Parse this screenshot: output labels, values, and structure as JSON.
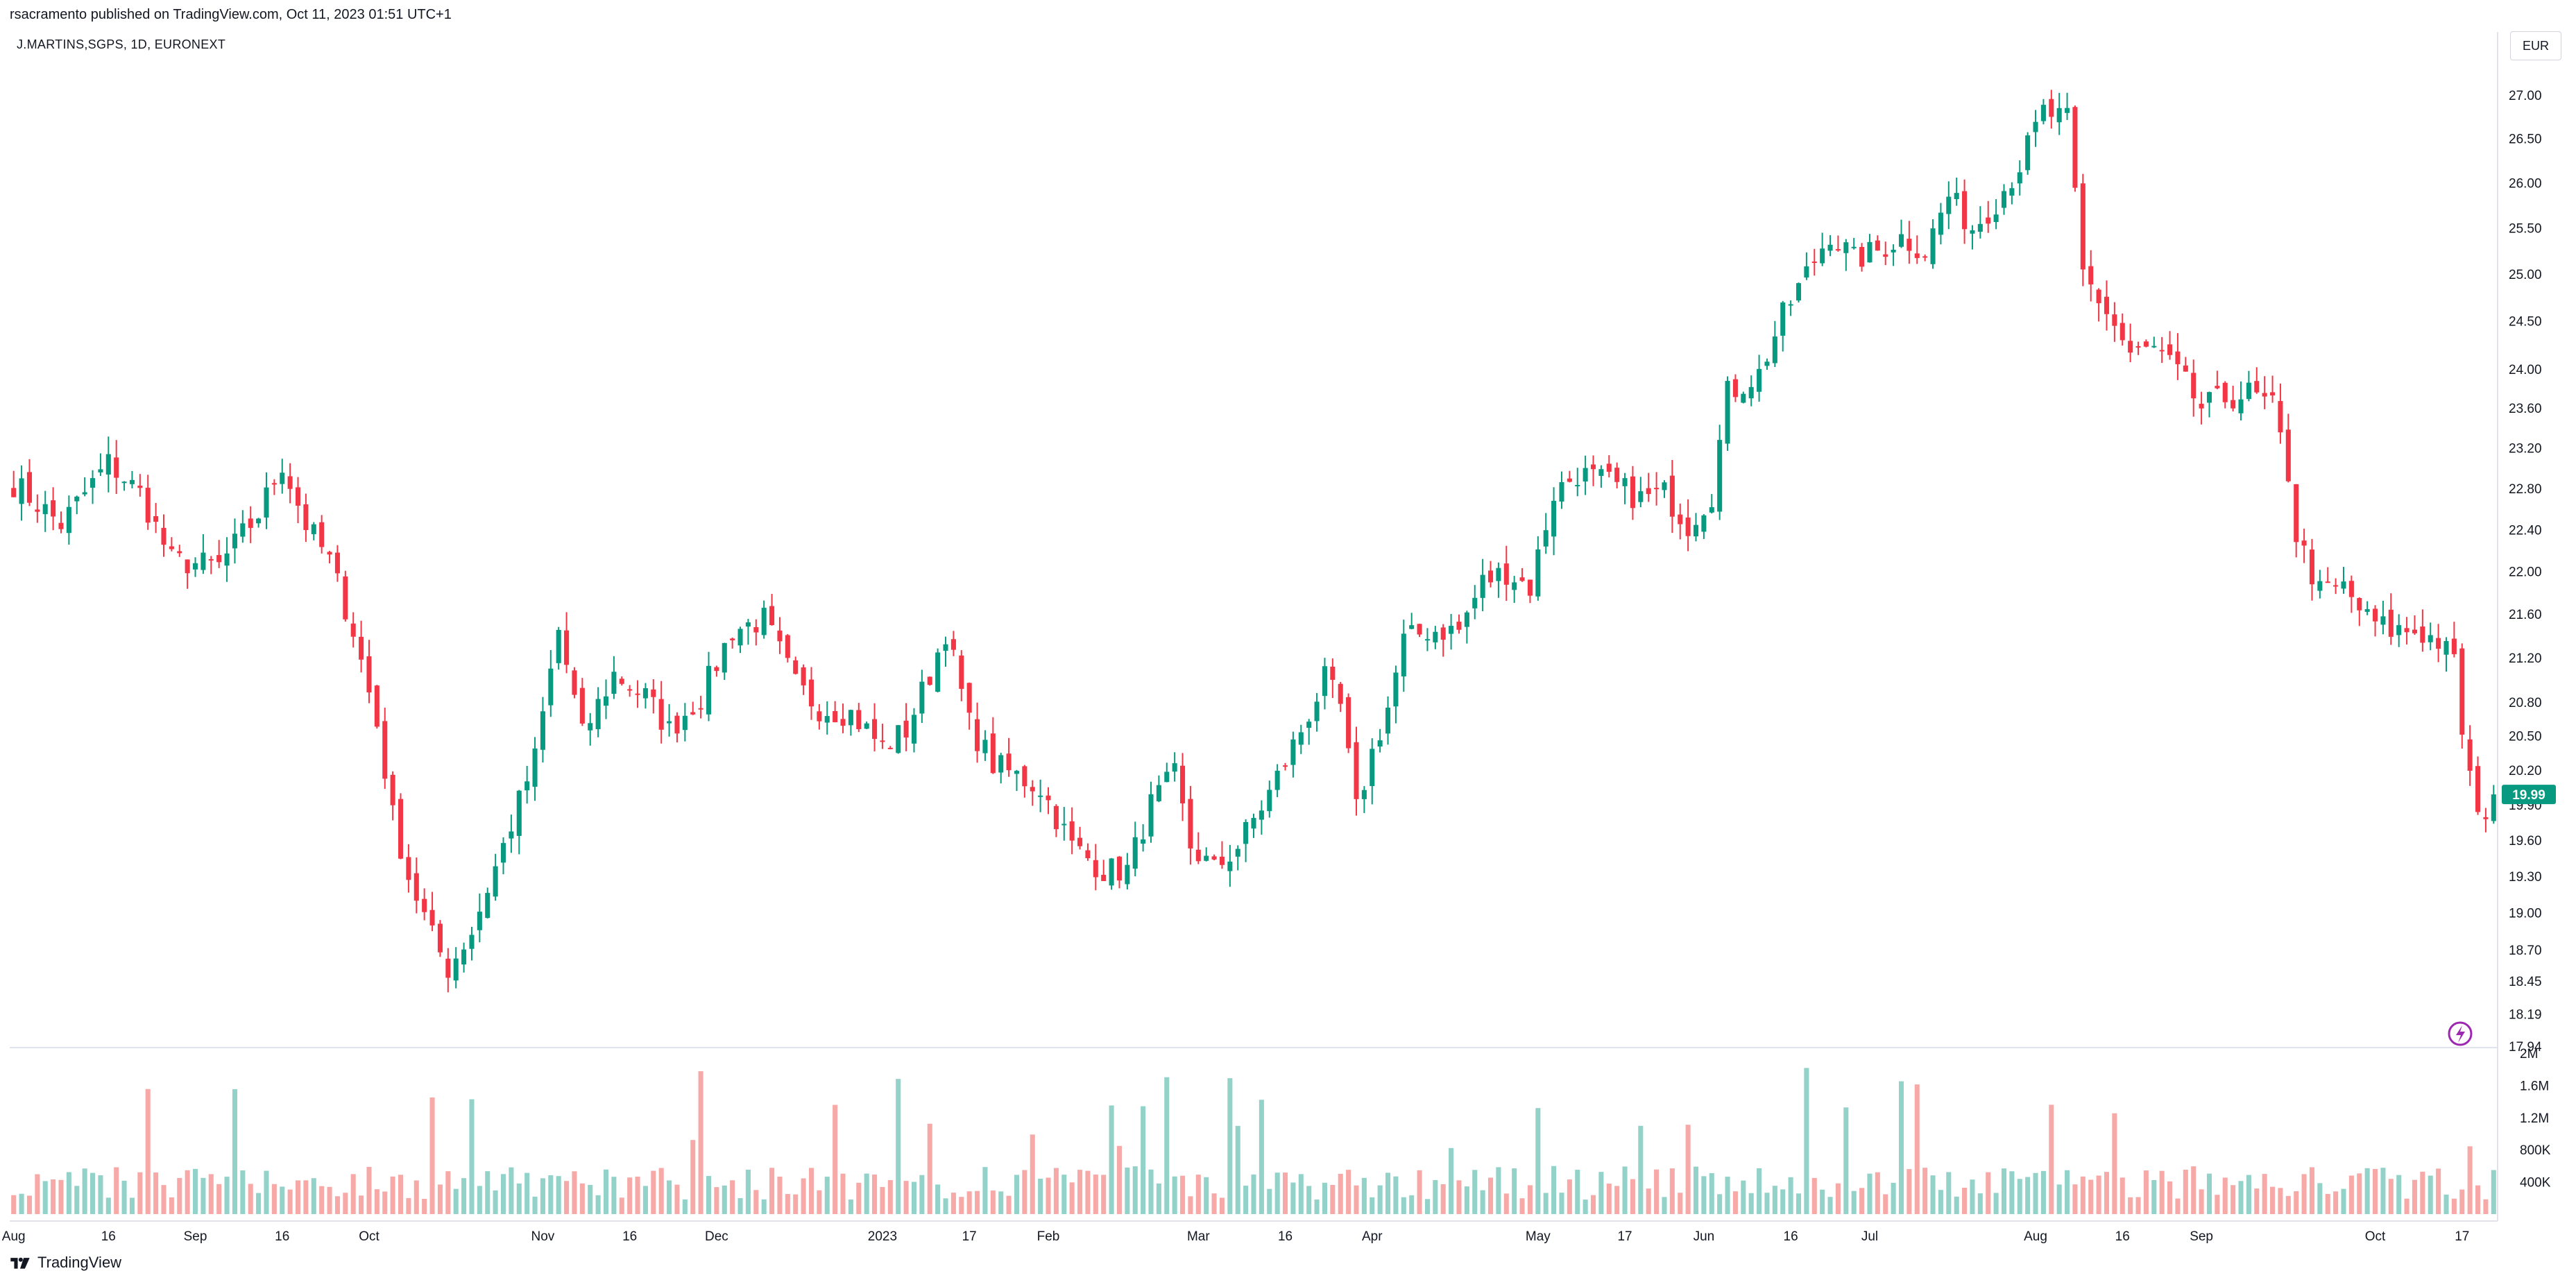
{
  "header": {
    "published": "rsacramento published on TradingView.com, Oct 11, 2023 01:51 UTC+1",
    "symbol": "J.MARTINS,SGPS, 1D, EURONEXT",
    "currency": "EUR"
  },
  "footer": {
    "brand": "TradingView"
  },
  "colors": {
    "up": "#089981",
    "down": "#f23645",
    "upVol": "#92d2c8",
    "downVol": "#f7a9a7",
    "lastPrice": "#089981"
  },
  "chart_data": {
    "type": "candlestick",
    "symbol": "J.MARTINS,SGPS",
    "interval": "1D",
    "exchange": "EURONEXT",
    "currency": "EUR",
    "price_axis": {
      "ticks": [
        17.94,
        18.19,
        18.45,
        18.7,
        19.0,
        19.3,
        19.6,
        19.9,
        20.2,
        20.5,
        20.8,
        21.2,
        21.6,
        22.0,
        22.4,
        22.8,
        23.2,
        23.6,
        24.0,
        24.5,
        25.0,
        25.5,
        26.0,
        26.5,
        27.0
      ],
      "scale": "logarithmic",
      "range": [
        17.94,
        27.2
      ]
    },
    "volume_axis": {
      "ticks": [
        "400K",
        "800K",
        "1.2M",
        "1.6M",
        "2M"
      ],
      "range": [
        0,
        2000000
      ]
    },
    "last_price": "19.99",
    "time_axis": [
      "Aug",
      "16",
      "Sep",
      "16",
      "Oct",
      "Nov",
      "16",
      "Dec",
      "2023",
      "17",
      "Feb",
      "Mar",
      "16",
      "Apr",
      "May",
      "17",
      "Jun",
      "16",
      "Jul",
      "Aug",
      "16",
      "Sep",
      "Oct",
      "17"
    ],
    "price_path": [
      [
        0,
        22.85
      ],
      [
        6,
        22.45
      ],
      [
        12,
        23.05
      ],
      [
        16,
        22.75
      ],
      [
        20,
        22.1
      ],
      [
        26,
        22.05
      ],
      [
        31,
        22.55
      ],
      [
        34,
        23.05
      ],
      [
        37,
        22.45
      ],
      [
        40,
        22.1
      ],
      [
        43,
        21.45
      ],
      [
        46,
        20.6
      ],
      [
        48,
        19.8
      ],
      [
        50,
        19.3
      ],
      [
        53,
        18.8
      ],
      [
        55,
        18.55
      ],
      [
        58,
        18.85
      ],
      [
        62,
        19.55
      ],
      [
        66,
        20.3
      ],
      [
        69,
        21.45
      ],
      [
        72,
        20.5
      ],
      [
        76,
        21.05
      ],
      [
        80,
        20.85
      ],
      [
        83,
        20.55
      ],
      [
        87,
        20.85
      ],
      [
        91,
        21.45
      ],
      [
        95,
        21.55
      ],
      [
        99,
        20.95
      ],
      [
        102,
        20.75
      ],
      [
        106,
        20.7
      ],
      [
        110,
        20.4
      ],
      [
        113,
        20.55
      ],
      [
        116,
        21.05
      ],
      [
        118,
        21.45
      ],
      [
        121,
        20.6
      ],
      [
        124,
        20.25
      ],
      [
        127,
        20.15
      ],
      [
        130,
        20.05
      ],
      [
        134,
        19.55
      ],
      [
        138,
        19.35
      ],
      [
        141,
        19.35
      ],
      [
        144,
        19.9
      ],
      [
        147,
        20.15
      ],
      [
        149,
        19.55
      ],
      [
        152,
        19.35
      ],
      [
        155,
        19.55
      ],
      [
        159,
        20.0
      ],
      [
        163,
        20.55
      ],
      [
        166,
        21.0
      ],
      [
        168,
        20.75
      ],
      [
        170,
        19.85
      ],
      [
        172,
        20.35
      ],
      [
        174,
        20.75
      ],
      [
        176,
        21.35
      ],
      [
        179,
        21.45
      ],
      [
        183,
        21.45
      ],
      [
        186,
        21.9
      ],
      [
        189,
        22.0
      ],
      [
        192,
        21.85
      ],
      [
        195,
        22.75
      ],
      [
        198,
        22.95
      ],
      [
        202,
        22.85
      ],
      [
        206,
        22.7
      ],
      [
        209,
        22.75
      ],
      [
        212,
        22.45
      ],
      [
        215,
        22.75
      ],
      [
        217,
        23.75
      ],
      [
        221,
        23.95
      ],
      [
        224,
        24.55
      ],
      [
        227,
        25.0
      ],
      [
        230,
        25.45
      ],
      [
        233,
        25.15
      ],
      [
        236,
        25.25
      ],
      [
        239,
        25.4
      ],
      [
        242,
        25.25
      ],
      [
        245,
        25.85
      ],
      [
        248,
        25.5
      ],
      [
        251,
        25.8
      ],
      [
        254,
        26.2
      ],
      [
        257,
        26.8
      ],
      [
        260,
        26.7
      ],
      [
        262,
        25.0
      ],
      [
        265,
        24.6
      ],
      [
        268,
        24.15
      ],
      [
        271,
        24.2
      ],
      [
        274,
        23.95
      ],
      [
        277,
        23.6
      ],
      [
        280,
        23.7
      ],
      [
        283,
        23.75
      ],
      [
        286,
        23.6
      ],
      [
        288,
        22.95
      ],
      [
        289,
        22.35
      ],
      [
        292,
        21.8
      ],
      [
        295,
        21.85
      ],
      [
        298,
        21.55
      ],
      [
        301,
        21.45
      ],
      [
        304,
        21.45
      ],
      [
        307,
        21.35
      ],
      [
        309,
        21.15
      ],
      [
        310,
        20.55
      ],
      [
        312,
        19.75
      ],
      [
        314,
        19.99
      ]
    ]
  }
}
